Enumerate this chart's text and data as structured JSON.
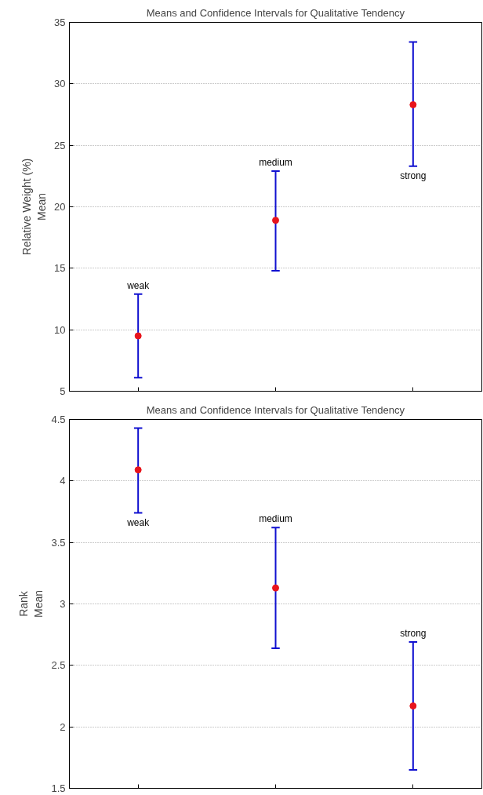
{
  "chart_data": [
    {
      "type": "scatter",
      "title": "Means and Confidence Intervals for Qualitative Tendency",
      "ylabel": "Relative Weight (%)\nMean",
      "categories": [
        null,
        null,
        null
      ],
      "series": [
        {
          "color": "#e8141c",
          "values": [
            9.5,
            18.9,
            28.3
          ],
          "errors": [
            [
              6.1,
              12.9
            ],
            [
              14.8,
              22.9
            ],
            [
              23.3,
              33.4
            ]
          ]
        }
      ],
      "annotations": [
        {
          "text": "weak",
          "y": 12.9
        },
        {
          "text": "medium",
          "y": 22.9
        },
        {
          "text": "strong",
          "y": 23.3
        }
      ],
      "ylim": [
        5,
        35
      ],
      "yticks": [
        5,
        10,
        15,
        20,
        25,
        30,
        35
      ],
      "grid": "y",
      "marker": "circle",
      "tick_labels": "y"
    },
    {
      "type": "scatter",
      "title": "Means and Confidence Intervals for Qualitative Tendency",
      "ylabel": "Rank\nMean",
      "categories": [
        null,
        null,
        null
      ],
      "series": [
        {
          "color": "#e8141c",
          "values": [
            4.09,
            3.13,
            2.17
          ],
          "errors": [
            [
              3.74,
              4.43
            ],
            [
              2.64,
              3.62
            ],
            [
              1.65,
              2.69
            ]
          ]
        }
      ],
      "annotations": [
        {
          "text": "weak",
          "y": 3.74
        },
        {
          "text": "medium",
          "y": 3.62
        },
        {
          "text": "strong",
          "y": 2.69
        }
      ],
      "ylim": [
        1.5,
        4.5
      ],
      "yticks": [
        1.5,
        2,
        2.5,
        3,
        3.5,
        4,
        4.5
      ],
      "grid": "y",
      "marker": "circle",
      "tick_labels": "y"
    }
  ]
}
